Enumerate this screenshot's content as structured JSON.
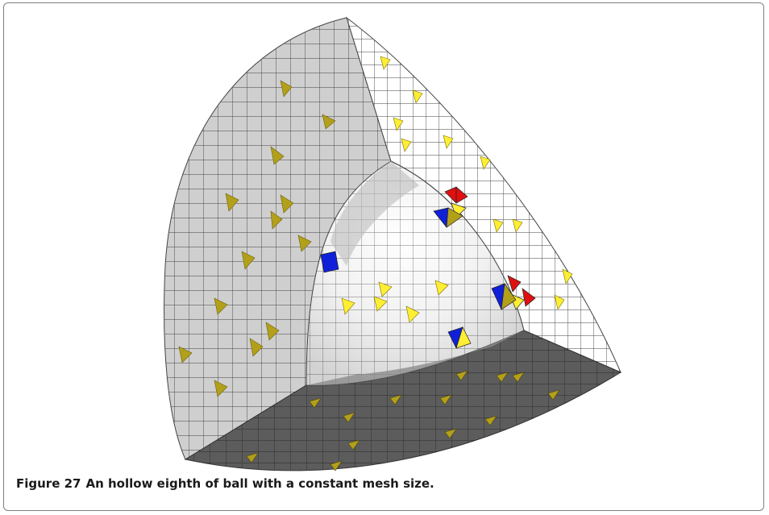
{
  "figure": {
    "label": "Figure 27",
    "caption": "An hollow eighth of ball with a constant mesh size."
  },
  "colors": {
    "outer_face": "#cfcfcf",
    "top_face": "#5c5c5c",
    "inner_surface": "#f2f2f2",
    "right_face": "#ffffff",
    "mesh_line": "#3f3f3f",
    "marker_olive": "#b3a01a",
    "marker_yellow": "#ffee33",
    "marker_red": "#e01010",
    "marker_blue": "#1020d8"
  }
}
